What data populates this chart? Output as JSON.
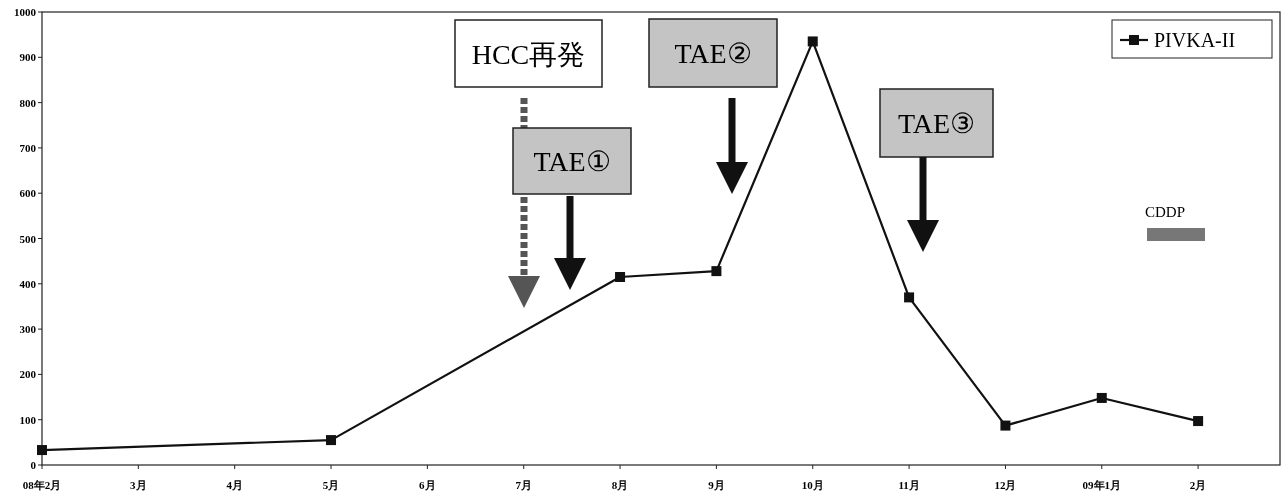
{
  "chart_data": {
    "type": "line",
    "categories": [
      "08年2月",
      "3月",
      "4月",
      "5月",
      "6月",
      "7月",
      "8月",
      "9月",
      "10月",
      "11月",
      "12月",
      "09年1月",
      "2月"
    ],
    "series": [
      {
        "name": "PIVKA-II",
        "color": "#111111",
        "values": [
          33,
          null,
          null,
          55,
          null,
          null,
          415,
          428,
          935,
          370,
          87,
          148,
          97
        ]
      }
    ],
    "ylim": [
      0,
      1000
    ],
    "yticks": [
      0,
      100,
      200,
      300,
      400,
      500,
      600,
      700,
      800,
      900,
      1000
    ],
    "marker": "square",
    "line_style": "solid",
    "legend": "top right",
    "grid": false,
    "annotations": [
      "HCC再発",
      "TAE①",
      "TAE②",
      "TAE③",
      "CDDP"
    ]
  }
}
